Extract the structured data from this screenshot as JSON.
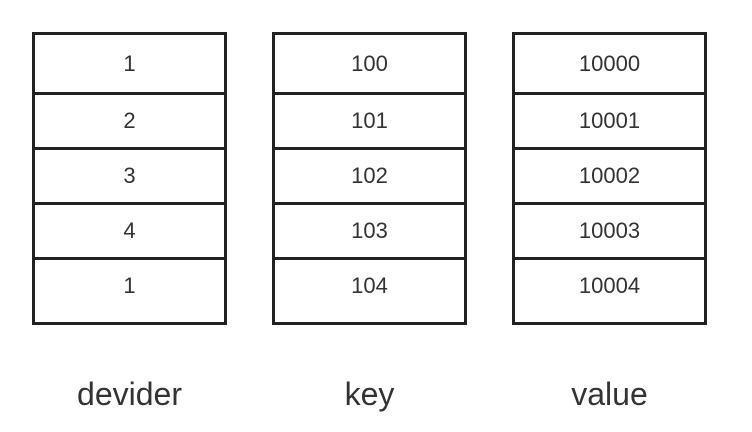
{
  "columns": [
    {
      "caption": "devider",
      "cells": [
        "1",
        "2",
        "3",
        "4",
        "1"
      ]
    },
    {
      "caption": "key",
      "cells": [
        "100",
        "101",
        "102",
        "103",
        "104"
      ]
    },
    {
      "caption": "value",
      "cells": [
        "10000",
        "10001",
        "10002",
        "10003",
        "10004"
      ]
    }
  ]
}
